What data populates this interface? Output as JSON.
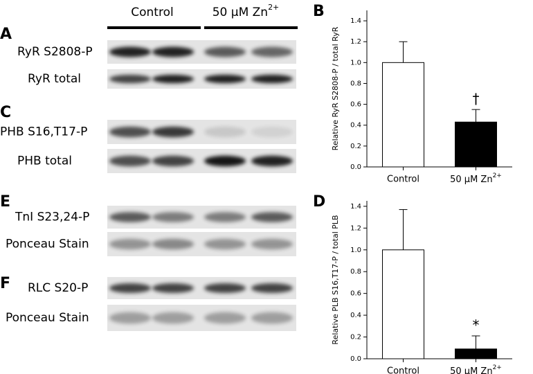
{
  "blots": {
    "header": {
      "control": "Control",
      "zinc": {
        "text": "50 μM Zn",
        "sup": "2+"
      }
    },
    "panels": [
      {
        "label": "A",
        "rows": [
          "RyR S2808-P",
          "RyR total"
        ]
      },
      {
        "label": "C",
        "rows": [
          "PHB S16,T17-P",
          "PHB total"
        ]
      },
      {
        "label": "E",
        "rows": [
          "TnI S23,24-P",
          "Ponceau Stain"
        ]
      },
      {
        "label": "F",
        "rows": [
          "RLC S20-P",
          "Ponceau Stain"
        ]
      }
    ]
  },
  "chart_data": [
    {
      "type": "bar",
      "panel_label": "B",
      "y_label": "Relative RyR S2808-P / total RyR",
      "categories": [
        "Control",
        {
          "text": "50 μM Zn",
          "sup": "2+"
        }
      ],
      "values": [
        1.0,
        0.43
      ],
      "errors": [
        0.2,
        0.12
      ],
      "colors": [
        "#ffffff",
        "#000000"
      ],
      "annotation": "†",
      "ylim": [
        0,
        1.5
      ],
      "yticks": [
        {
          "value": 0,
          "label": "0.0"
        },
        {
          "value": 0.2,
          "label": "0.2"
        },
        {
          "value": 0.4,
          "label": "0.4"
        },
        {
          "value": 0.6,
          "label": "0.6"
        },
        {
          "value": 0.8,
          "label": "0.8"
        },
        {
          "value": 1,
          "label": "1.0"
        },
        {
          "value": 1.2,
          "label": "1.2"
        },
        {
          "value": 1.4,
          "label": "1.4"
        }
      ]
    },
    {
      "type": "bar",
      "panel_label": "D",
      "y_label": "Relative PLB S16,T17-P / total PLB",
      "categories": [
        "Control",
        {
          "text": "50 μM Zn",
          "sup": "2+"
        }
      ],
      "values": [
        1.0,
        0.09
      ],
      "errors": [
        0.37,
        0.12
      ],
      "colors": [
        "#ffffff",
        "#000000"
      ],
      "annotation": "*",
      "ylim": [
        0,
        1.45
      ],
      "yticks": [
        {
          "value": 0,
          "label": "0.0"
        },
        {
          "value": 0.2,
          "label": "0.2"
        },
        {
          "value": 0.4,
          "label": "0.4"
        },
        {
          "value": 0.6,
          "label": "0.6"
        },
        {
          "value": 0.8,
          "label": "0.8"
        },
        {
          "value": 1,
          "label": "1.0"
        },
        {
          "value": 1.2,
          "label": "1.2"
        },
        {
          "value": 1.4,
          "label": "1.4"
        }
      ]
    }
  ]
}
